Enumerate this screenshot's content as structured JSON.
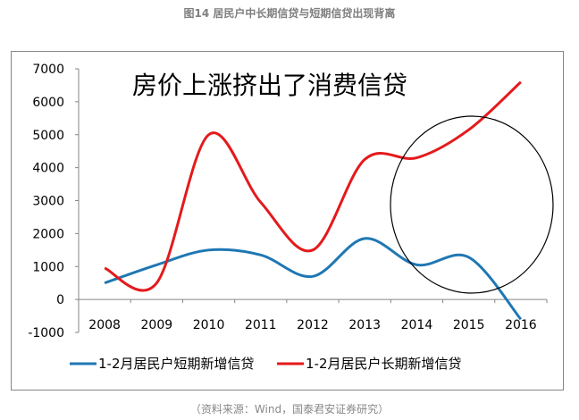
{
  "title": "图14  居民户中长期信贷与短期信贷出现背离",
  "source": "（资料来源：Wind，国泰君安证券研究）",
  "chart_data": {
    "type": "line",
    "annotation": "房价上涨挤出了消费信贷",
    "categories": [
      "2008",
      "2009",
      "2010",
      "2011",
      "2012",
      "2013",
      "2014",
      "2015",
      "2016"
    ],
    "ylim": [
      -1000,
      7000
    ],
    "yticks": [
      "7000",
      "6000",
      "5000",
      "4000",
      "3000",
      "2000",
      "1000",
      "0",
      "-1000"
    ],
    "grid": false,
    "legend": "bottom",
    "series": [
      {
        "name": "1-2月居民户短期新增信贷",
        "color": "#1f77b4",
        "values": [
          500,
          1050,
          1500,
          1350,
          700,
          1850,
          1050,
          1280,
          -600
        ]
      },
      {
        "name": "1-2月居民户长期新增信贷",
        "color": "#e41a1c",
        "values": [
          950,
          500,
          5000,
          2950,
          1500,
          4250,
          4300,
          5150,
          6600
        ]
      }
    ]
  }
}
